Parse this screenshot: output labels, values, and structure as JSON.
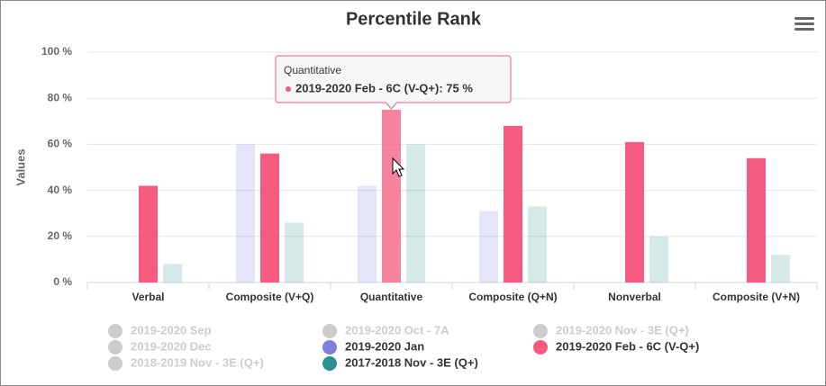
{
  "chart_data": {
    "type": "bar",
    "title": "Percentile Rank",
    "y_label": "Values",
    "categories": [
      "Verbal",
      "Composite (V+Q)",
      "Quantitative",
      "Composite (Q+N)",
      "Nonverbal",
      "Composite (V+N)"
    ],
    "ylim": [
      0,
      100
    ],
    "yticks": [
      {
        "value": 0,
        "label": "0 %"
      },
      {
        "value": 20,
        "label": "20 %"
      },
      {
        "value": 40,
        "label": "40 %"
      },
      {
        "value": 60,
        "label": "60 %"
      },
      {
        "value": 80,
        "label": "80 %"
      },
      {
        "value": 100,
        "label": "100 %"
      }
    ],
    "grid": true,
    "series": [
      {
        "name": "2019-2020 Sep",
        "visible": false
      },
      {
        "name": "2019-2020 Oct - 7A",
        "visible": false
      },
      {
        "name": "2019-2020 Nov - 3E (Q+)",
        "visible": false
      },
      {
        "name": "2019-2020 Dec",
        "visible": false
      },
      {
        "name": "2019-2020 Jan",
        "visible": true,
        "color": "#7f7fe0",
        "values": [
          null,
          60,
          42,
          31,
          null,
          null
        ]
      },
      {
        "name": "2019-2020 Feb - 6C (V-Q+)",
        "visible": true,
        "color": "#f45b7f",
        "values": [
          42,
          56,
          75,
          68,
          61,
          54
        ]
      },
      {
        "name": "2018-2019 Nov - 3E (Q+)",
        "visible": false
      },
      {
        "name": "2017-2018 Nov - 3E (Q+)",
        "visible": true,
        "color": "#2b908f",
        "values": [
          8,
          26,
          60,
          33,
          20,
          12
        ]
      }
    ],
    "tooltip": {
      "header": "Quantitative",
      "text": "2019-2020 Feb - 6C (V-Q+): 75 %"
    }
  }
}
